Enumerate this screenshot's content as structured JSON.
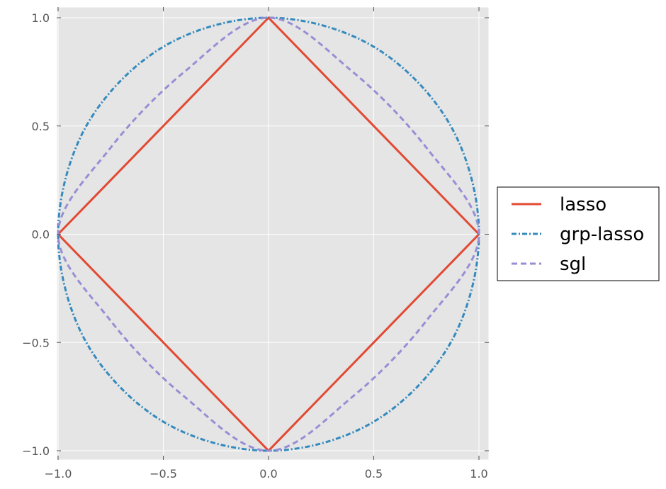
{
  "chart_data": {
    "type": "line",
    "title": "",
    "xlabel": "",
    "ylabel": "",
    "xlim": [
      -1.0,
      1.0
    ],
    "ylim": [
      -1.0,
      1.0
    ],
    "grid": true,
    "background": "#e5e5e5",
    "x_ticks": [
      "−1.0",
      "−0.5",
      "0.0",
      "0.5",
      "1.0"
    ],
    "y_ticks": [
      "−1.0",
      "−0.5",
      "0.0",
      "0.5",
      "1.0"
    ],
    "x_tick_values": [
      -1.0,
      -0.5,
      0.0,
      0.5,
      1.0
    ],
    "y_tick_values": [
      -1.0,
      -0.5,
      0.0,
      0.5,
      1.0
    ],
    "legend_position": "right",
    "series": [
      {
        "name": "lasso",
        "color": "#e24a33",
        "style": "solid",
        "x": [
          1.0,
          0.0,
          -1.0,
          0.0,
          1.0
        ],
        "y": [
          0.0,
          1.0,
          0.0,
          -1.0,
          0.0
        ]
      },
      {
        "name": "grp-lasso",
        "color": "#348abd",
        "style": "dashdot",
        "x": [
          1.0,
          0.866,
          0.5,
          0.0,
          -0.5,
          -0.866,
          -1.0,
          -0.866,
          -0.5,
          0.0,
          0.5,
          0.866,
          1.0
        ],
        "y": [
          0.0,
          0.5,
          0.866,
          1.0,
          0.866,
          0.5,
          0.0,
          -0.5,
          -0.866,
          -1.0,
          -0.866,
          -0.5,
          0.0
        ]
      },
      {
        "name": "sgl",
        "color": "#988ed5",
        "style": "dashed",
        "x": [
          1.0,
          0.75,
          0.4,
          0.0,
          -0.4,
          -0.75,
          -1.0,
          -0.75,
          -0.4,
          0.0,
          0.4,
          0.75,
          1.0
        ],
        "y": [
          0.0,
          0.4,
          0.75,
          1.0,
          0.75,
          0.4,
          0.0,
          -0.4,
          -0.75,
          -1.0,
          -0.75,
          -0.4,
          0.0
        ]
      }
    ]
  }
}
